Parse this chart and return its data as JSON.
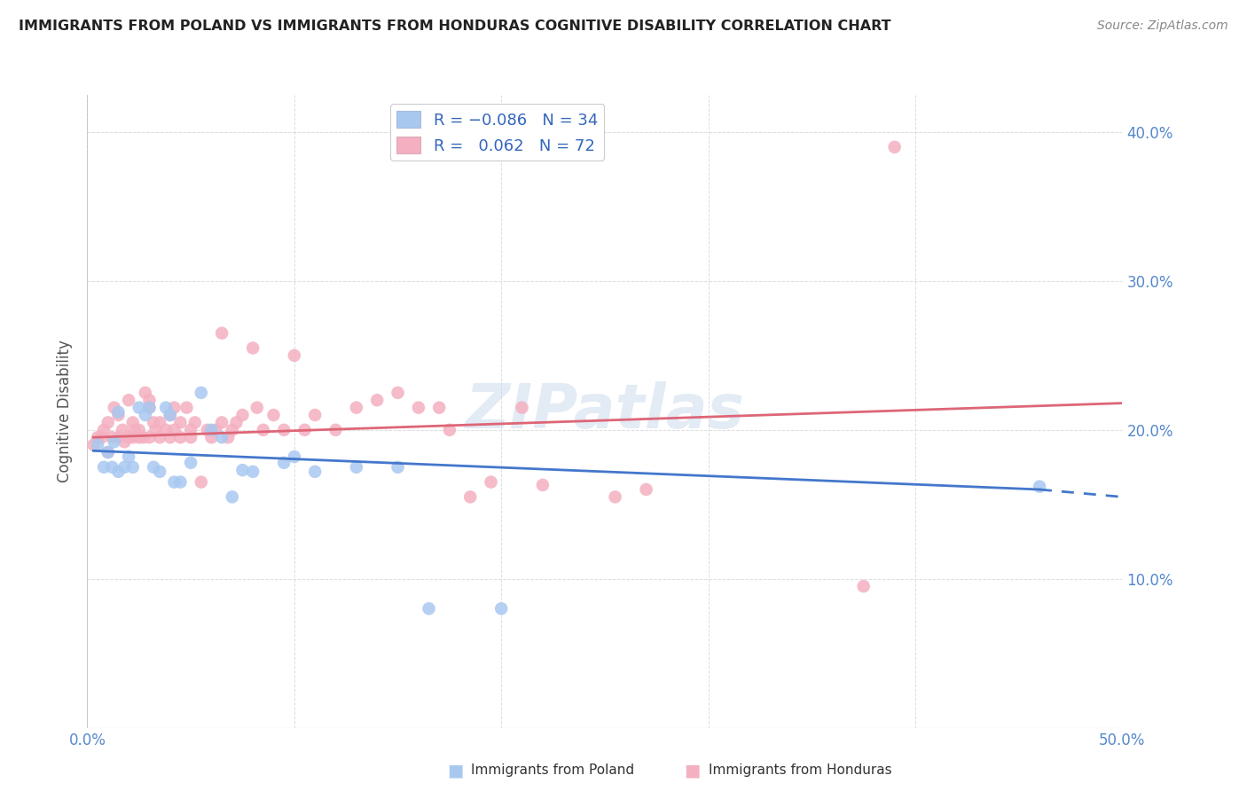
{
  "title": "IMMIGRANTS FROM POLAND VS IMMIGRANTS FROM HONDURAS COGNITIVE DISABILITY CORRELATION CHART",
  "source": "Source: ZipAtlas.com",
  "ylabel": "Cognitive Disability",
  "xlim": [
    0.0,
    0.5
  ],
  "ylim": [
    0.0,
    0.425
  ],
  "xticks": [
    0.0,
    0.1,
    0.2,
    0.3,
    0.4,
    0.5
  ],
  "xticklabels": [
    "0.0%",
    "",
    "",
    "",
    "",
    "50.0%"
  ],
  "yticks": [
    0.1,
    0.2,
    0.3,
    0.4
  ],
  "yticklabels": [
    "10.0%",
    "20.0%",
    "30.0%",
    "40.0%"
  ],
  "color_poland": "#a8c8f0",
  "color_honduras": "#f4b0c0",
  "trendline_poland_color": "#4477cc",
  "trendline_honduras_color": "#dd6677",
  "watermark": "ZIPatlas",
  "poland_points_x": [
    0.005,
    0.008,
    0.01,
    0.012,
    0.013,
    0.015,
    0.015,
    0.018,
    0.02,
    0.022,
    0.025,
    0.028,
    0.03,
    0.032,
    0.035,
    0.038,
    0.04,
    0.042,
    0.045,
    0.05,
    0.055,
    0.06,
    0.065,
    0.07,
    0.075,
    0.08,
    0.095,
    0.1,
    0.11,
    0.13,
    0.15,
    0.165,
    0.2,
    0.46
  ],
  "poland_points_y": [
    0.19,
    0.175,
    0.185,
    0.175,
    0.192,
    0.172,
    0.212,
    0.175,
    0.182,
    0.175,
    0.215,
    0.21,
    0.215,
    0.175,
    0.172,
    0.215,
    0.21,
    0.165,
    0.165,
    0.178,
    0.225,
    0.2,
    0.195,
    0.155,
    0.173,
    0.172,
    0.178,
    0.182,
    0.172,
    0.175,
    0.175,
    0.08,
    0.08,
    0.162
  ],
  "honduras_points_x": [
    0.003,
    0.005,
    0.007,
    0.008,
    0.01,
    0.01,
    0.012,
    0.013,
    0.015,
    0.015,
    0.017,
    0.018,
    0.02,
    0.02,
    0.022,
    0.022,
    0.023,
    0.025,
    0.025,
    0.027,
    0.028,
    0.03,
    0.03,
    0.03,
    0.032,
    0.033,
    0.035,
    0.035,
    0.038,
    0.04,
    0.04,
    0.042,
    0.042,
    0.045,
    0.045,
    0.048,
    0.05,
    0.05,
    0.052,
    0.055,
    0.058,
    0.06,
    0.062,
    0.065,
    0.065,
    0.068,
    0.07,
    0.072,
    0.075,
    0.08,
    0.082,
    0.085,
    0.09,
    0.095,
    0.1,
    0.105,
    0.11,
    0.12,
    0.13,
    0.14,
    0.15,
    0.16,
    0.17,
    0.175,
    0.185,
    0.195,
    0.21,
    0.22,
    0.255,
    0.27,
    0.375,
    0.39
  ],
  "honduras_points_y": [
    0.19,
    0.195,
    0.195,
    0.2,
    0.185,
    0.205,
    0.195,
    0.215,
    0.195,
    0.21,
    0.2,
    0.192,
    0.195,
    0.22,
    0.195,
    0.205,
    0.2,
    0.195,
    0.2,
    0.195,
    0.225,
    0.22,
    0.195,
    0.215,
    0.205,
    0.2,
    0.195,
    0.205,
    0.2,
    0.195,
    0.21,
    0.2,
    0.215,
    0.205,
    0.195,
    0.215,
    0.2,
    0.195,
    0.205,
    0.165,
    0.2,
    0.195,
    0.2,
    0.205,
    0.265,
    0.195,
    0.2,
    0.205,
    0.21,
    0.255,
    0.215,
    0.2,
    0.21,
    0.2,
    0.25,
    0.2,
    0.21,
    0.2,
    0.215,
    0.22,
    0.225,
    0.215,
    0.215,
    0.2,
    0.155,
    0.165,
    0.215,
    0.163,
    0.155,
    0.16,
    0.095,
    0.39
  ],
  "trendline_poland_x_start": 0.003,
  "trendline_poland_x_data_end": 0.46,
  "trendline_poland_x_dash_end": 0.5,
  "trendline_poland_y_start": 0.186,
  "trendline_poland_y_data_end": 0.16,
  "trendline_poland_y_dash_end": 0.155,
  "trendline_honduras_x_start": 0.003,
  "trendline_honduras_x_end": 0.5,
  "trendline_honduras_y_start": 0.195,
  "trendline_honduras_y_end": 0.218
}
